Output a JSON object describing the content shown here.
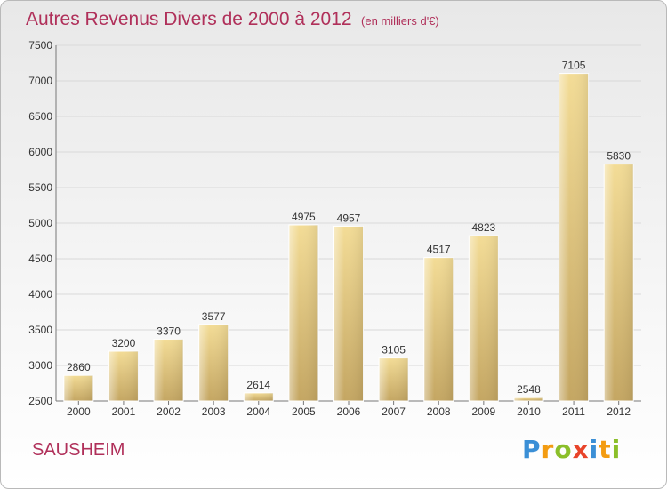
{
  "title": "Autres Revenus Divers de 2000 à 2012",
  "subtitle": "(en milliers d'€)",
  "city": "SAUSHEIM",
  "logo": "Proxiti",
  "chart_data": {
    "type": "bar",
    "categories": [
      "2000",
      "2001",
      "2002",
      "2003",
      "2004",
      "2005",
      "2006",
      "2007",
      "2008",
      "2009",
      "2010",
      "2011",
      "2012"
    ],
    "values": [
      2860,
      3200,
      3370,
      3577,
      2614,
      4975,
      4957,
      3105,
      4517,
      4823,
      2548,
      7105,
      5830
    ],
    "data_labels": [
      "2860",
      "3200",
      "3370",
      "3577",
      "2614",
      "4975",
      "4957",
      "3105",
      "4517",
      "4823",
      "2548",
      "7105",
      "5830"
    ],
    "ylim": [
      2500,
      7500
    ],
    "yticks": [
      2500,
      3000,
      3500,
      4000,
      4500,
      5000,
      5500,
      6000,
      6500,
      7000,
      7500
    ],
    "grid": true,
    "bar_color": "#e8cf8a"
  }
}
